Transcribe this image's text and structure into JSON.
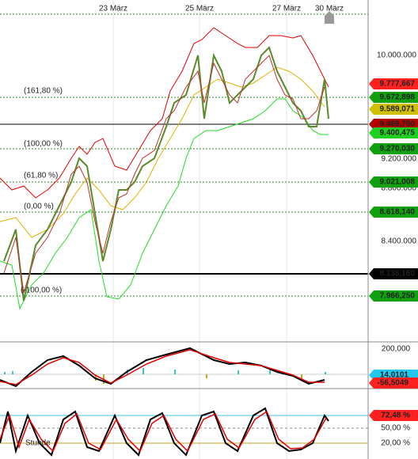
{
  "dates": [
    "23 März",
    "25 März",
    "27 März",
    "30 März"
  ],
  "price_axis": [
    "10.000.000",
    "9.200.000",
    "8.800.000",
    "8.400.000"
  ],
  "fib_levels": [
    "(161,80 %)",
    "(100,00 %)",
    "(61,80 %)",
    "(0,00 %)",
    "(-100,00 %)"
  ],
  "price_tags": [
    "9.777,667",
    "9.672,898",
    "9.589,071",
    "9.469,750",
    "9.400,475",
    "9.270,030",
    "9.021,008",
    "8.618,140",
    "8.136,160",
    "7.966,250"
  ],
  "macd_panel": {
    "axis": "200,000",
    "tags": [
      "14,0101",
      "-56,5049"
    ]
  },
  "stoch_panel": {
    "tags": [
      "72,48 %",
      "50,00 %",
      "20,00 %"
    ],
    "period": "Stunde"
  }
}
